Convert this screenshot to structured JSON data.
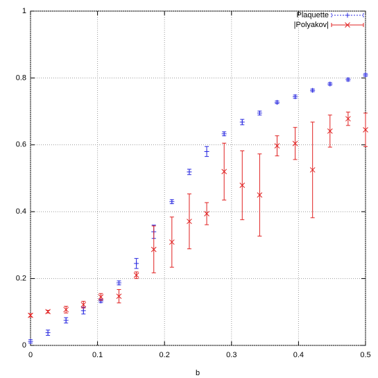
{
  "chart_data": {
    "type": "errorbar",
    "xlabel": "b",
    "x": [
      0,
      0.026,
      0.053,
      0.079,
      0.105,
      0.132,
      0.158,
      0.184,
      0.211,
      0.237,
      0.263,
      0.289,
      0.316,
      0.342,
      0.368,
      0.395,
      0.421,
      0.447,
      0.474,
      0.5
    ],
    "series": [
      {
        "name": "Plaquette",
        "color": "#2a2ae0",
        "marker": "plus",
        "values": [
          0.012,
          0.038,
          0.075,
          0.104,
          0.133,
          0.187,
          0.245,
          0.34,
          0.43,
          0.519,
          0.58,
          0.633,
          0.668,
          0.695,
          0.727,
          0.744,
          0.763,
          0.782,
          0.795,
          0.809
        ],
        "errors": [
          0.005,
          0.008,
          0.008,
          0.01,
          0.005,
          0.006,
          0.015,
          0.02,
          0.006,
          0.008,
          0.015,
          0.006,
          0.008,
          0.006,
          0.004,
          0.005,
          0.004,
          0.004,
          0.004,
          0.004
        ]
      },
      {
        "name": "|Polyakov|",
        "color": "#e02020",
        "marker": "cross",
        "values": [
          0.09,
          0.101,
          0.107,
          0.122,
          0.145,
          0.147,
          0.21,
          0.287,
          0.309,
          0.371,
          0.394,
          0.52,
          0.479,
          0.45,
          0.597,
          0.604,
          0.525,
          0.641,
          0.678,
          0.645
        ],
        "errors": [
          0.005,
          0.004,
          0.01,
          0.01,
          0.01,
          0.02,
          0.01,
          0.07,
          0.075,
          0.082,
          0.033,
          0.085,
          0.103,
          0.123,
          0.03,
          0.048,
          0.143,
          0.048,
          0.02,
          0.05
        ]
      }
    ],
    "xlim": [
      0,
      0.5
    ],
    "ylim": [
      0,
      1
    ],
    "xticks": [
      0,
      0.1,
      0.2,
      0.3,
      0.4,
      0.5
    ],
    "yticks": [
      0,
      0.2,
      0.4,
      0.6,
      0.8,
      1
    ],
    "grid": true,
    "legend": "top-right"
  }
}
